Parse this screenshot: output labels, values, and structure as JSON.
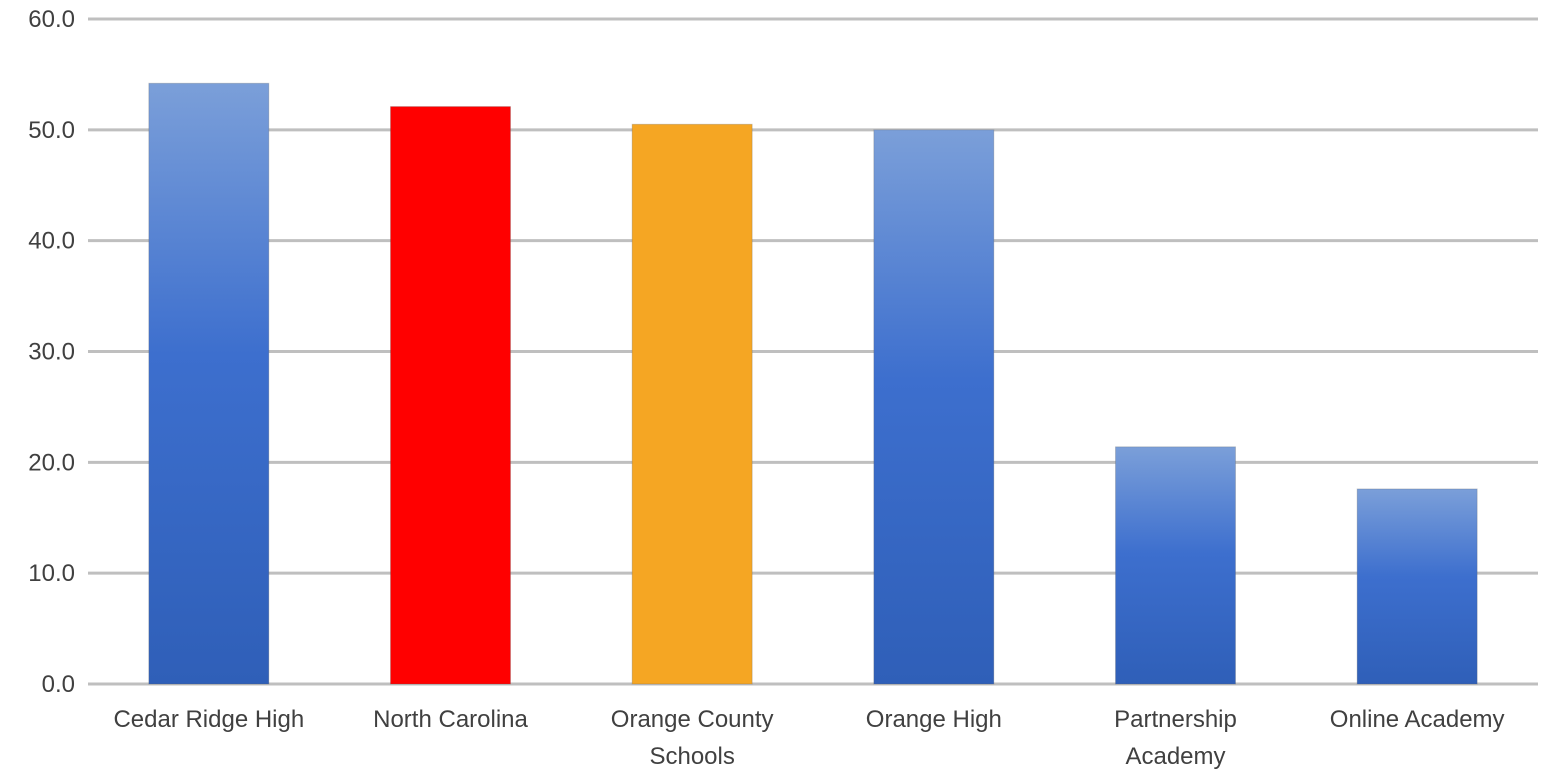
{
  "chart_data": {
    "type": "bar",
    "title": "",
    "xlabel": "",
    "ylabel": "",
    "ylim": [
      0,
      60
    ],
    "yticks": [
      0,
      10,
      20,
      30,
      40,
      50,
      60
    ],
    "ytick_labels": [
      "0.0",
      "10.0",
      "20.0",
      "30.0",
      "40.0",
      "50.0",
      "60.0"
    ],
    "grid": true,
    "legend": "none",
    "categories": [
      [
        "Cedar Ridge High"
      ],
      [
        "North Carolina"
      ],
      [
        "Orange County",
        "Schools"
      ],
      [
        "Orange High"
      ],
      [
        "Partnership",
        "Academy"
      ],
      [
        "Online Academy"
      ]
    ],
    "values": [
      54.2,
      52.1,
      50.5,
      50.0,
      21.4,
      17.6
    ],
    "bar_styles": [
      "blue-gradient",
      "solid-red",
      "solid-orange",
      "blue-gradient",
      "blue-gradient",
      "blue-gradient"
    ],
    "colors": {
      "blue_top": "#7b9fd9",
      "blue_mid": "#3d6fce",
      "blue_bottom": "#2f5fb8",
      "red": "#ff0000",
      "orange": "#f5a623",
      "grid": "#bfbfbf",
      "text": "#404040"
    }
  }
}
